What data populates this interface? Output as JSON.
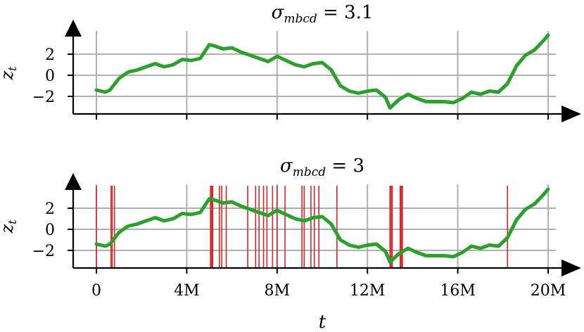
{
  "chart_data": [
    {
      "type": "line",
      "title": "σ_mbcd = 3.1",
      "xlabel": "",
      "ylabel": "z_t",
      "xlim": [
        0,
        20000000
      ],
      "ylim": [
        -3.6,
        4.2
      ],
      "yticks": [
        2,
        0,
        -2
      ],
      "ytick_labels": [
        "2",
        "0",
        "−2"
      ],
      "grid": true,
      "series": [
        {
          "color": "#2ca02c",
          "x": [
            0,
            400000,
            600000,
            1000000,
            1400000,
            1800000,
            2200000,
            2600000,
            3000000,
            3400000,
            3800000,
            4200000,
            4600000,
            5000000,
            5200000,
            5600000,
            6000000,
            6400000,
            6800000,
            7200000,
            7600000,
            8000000,
            8400000,
            8800000,
            9200000,
            9600000,
            10000000,
            10400000,
            10800000,
            11200000,
            11600000,
            12000000,
            12400000,
            12800000,
            13000000,
            13400000,
            13800000,
            14200000,
            14600000,
            15000000,
            15400000,
            15800000,
            16200000,
            16600000,
            17000000,
            17400000,
            17800000,
            18200000,
            18600000,
            19000000,
            19400000,
            19800000,
            20000000
          ],
          "values": [
            -1.4,
            -1.6,
            -1.4,
            -0.3,
            0.3,
            0.5,
            0.8,
            1.1,
            0.8,
            1.0,
            1.5,
            1.4,
            1.6,
            2.9,
            2.8,
            2.5,
            2.6,
            2.2,
            1.9,
            1.6,
            1.3,
            1.8,
            1.4,
            1.0,
            0.8,
            1.1,
            1.2,
            0.5,
            -1.0,
            -1.5,
            -1.7,
            -1.5,
            -1.4,
            -2.1,
            -3.1,
            -2.3,
            -1.8,
            -2.2,
            -2.5,
            -2.5,
            -2.5,
            -2.6,
            -2.2,
            -1.6,
            -1.8,
            -1.5,
            -1.6,
            -0.8,
            0.9,
            1.9,
            2.4,
            3.3,
            3.8
          ]
        }
      ]
    },
    {
      "type": "line",
      "title": "σ_mbcd = 3",
      "xlabel": "t",
      "ylabel": "z_t",
      "xlim": [
        0,
        20000000
      ],
      "ylim": [
        -3.6,
        4.2
      ],
      "yticks": [
        2,
        0,
        -2
      ],
      "ytick_labels": [
        "2",
        "0",
        "−2"
      ],
      "xticks": [
        0,
        4000000,
        8000000,
        12000000,
        16000000,
        20000000
      ],
      "xtick_labels": [
        "0",
        "4M",
        "8M",
        "12M",
        "16M",
        "20M"
      ],
      "grid": true,
      "series": [
        {
          "color": "#2ca02c",
          "x": [
            0,
            400000,
            600000,
            1000000,
            1400000,
            1800000,
            2200000,
            2600000,
            3000000,
            3400000,
            3800000,
            4200000,
            4600000,
            5000000,
            5200000,
            5600000,
            6000000,
            6400000,
            6800000,
            7200000,
            7600000,
            8000000,
            8400000,
            8800000,
            9200000,
            9600000,
            10000000,
            10400000,
            10800000,
            11200000,
            11600000,
            12000000,
            12400000,
            12800000,
            13000000,
            13400000,
            13800000,
            14200000,
            14600000,
            15000000,
            15400000,
            15800000,
            16200000,
            16600000,
            17000000,
            17400000,
            17800000,
            18200000,
            18600000,
            19000000,
            19400000,
            19800000,
            20000000
          ],
          "values": [
            -1.4,
            -1.6,
            -1.4,
            -0.3,
            0.3,
            0.5,
            0.8,
            1.1,
            0.8,
            1.0,
            1.5,
            1.4,
            1.6,
            2.9,
            2.8,
            2.5,
            2.6,
            2.2,
            1.9,
            1.6,
            1.3,
            1.8,
            1.4,
            1.0,
            0.8,
            1.1,
            1.2,
            0.5,
            -1.0,
            -1.5,
            -1.7,
            -1.5,
            -1.4,
            -2.1,
            -3.1,
            -2.3,
            -1.8,
            -2.2,
            -2.5,
            -2.5,
            -2.5,
            -2.6,
            -2.2,
            -1.6,
            -1.8,
            -1.5,
            -1.6,
            -0.8,
            0.9,
            1.9,
            2.4,
            3.3,
            3.8
          ]
        }
      ],
      "vlines": {
        "color": "#d62728",
        "x": [
          0,
          650000,
          700000,
          800000,
          5050000,
          5100000,
          5150000,
          5450000,
          5550000,
          5750000,
          6700000,
          7050000,
          7200000,
          7400000,
          7550000,
          7800000,
          8000000,
          8350000,
          9100000,
          9200000,
          9500000,
          9650000,
          9850000,
          10650000,
          13000000,
          13050000,
          13100000,
          13450000,
          13500000,
          13550000,
          18200000
        ]
      }
    }
  ]
}
